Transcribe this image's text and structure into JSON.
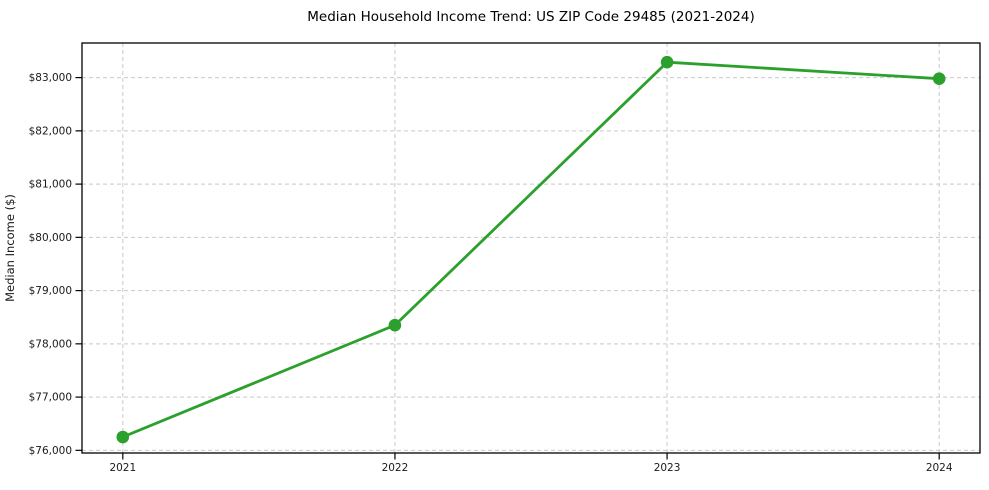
{
  "chart_data": {
    "type": "line",
    "title": "Median Household Income Trend: US ZIP Code 29485 (2021-2024)",
    "xlabel": "",
    "ylabel": "Median Income ($)",
    "x": [
      2021,
      2022,
      2023,
      2024
    ],
    "x_tick_labels": [
      "2021",
      "2022",
      "2023",
      "2024"
    ],
    "series": [
      {
        "values": [
          76250,
          78350,
          83290,
          82980
        ],
        "color": "#2ca02c",
        "marker": "circle"
      }
    ],
    "y_ticks": [
      76000,
      77000,
      78000,
      79000,
      80000,
      81000,
      82000,
      83000
    ],
    "y_tick_labels": [
      "$76,000",
      "$77,000",
      "$78,000",
      "$79,000",
      "$80,000",
      "$81,000",
      "$82,000",
      "$83,000"
    ],
    "xlim": [
      2020.85,
      2024.15
    ],
    "ylim": [
      75950,
      83650
    ],
    "grid": {
      "visible": true,
      "style": "dashed",
      "color": "#c9c9c9",
      "which": "both"
    },
    "legend_position": "none",
    "colors": {
      "background": "#ffffff",
      "spine": "#000000",
      "tick": "#000000",
      "text": "#1a1a1a",
      "accent": "#2ca02c"
    }
  }
}
